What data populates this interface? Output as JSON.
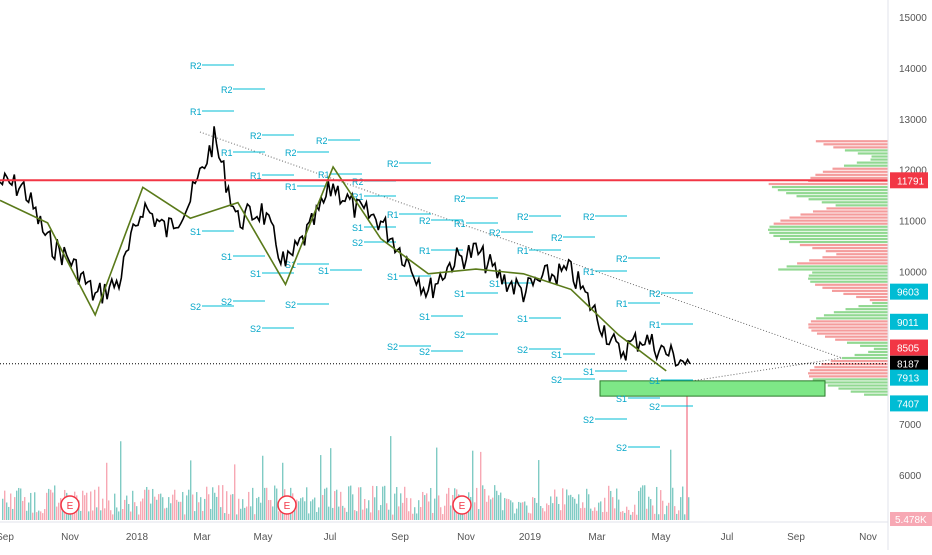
{
  "chart_data": {
    "type": "candlestick",
    "title": "",
    "xlabel": "",
    "ylabel": "",
    "ylim": [
      4800,
      15400
    ],
    "price_ticks": [
      15000,
      14000,
      13000,
      12000,
      11000,
      10000,
      9000,
      8000,
      7000,
      6000
    ],
    "x_ticks": [
      "Sep",
      "Nov",
      "2018",
      "Mar",
      "May",
      "Jul",
      "Sep",
      "Nov",
      "2019",
      "Mar",
      "May",
      "Jul",
      "Sep",
      "Nov"
    ],
    "price_labels": [
      {
        "value": 11791,
        "text": "11791",
        "color": "#f23645"
      },
      {
        "value": 9603,
        "text": "9603",
        "color": "#00bcd4"
      },
      {
        "value": 9011,
        "text": "9011",
        "color": "#00bcd4"
      },
      {
        "value": 8505,
        "text": "8505",
        "color": "#f23645"
      },
      {
        "value": 8187,
        "text": "8187",
        "color": "#000000"
      },
      {
        "value": 7913,
        "text": "7913",
        "color": "#00bcd4"
      },
      {
        "value": 7407,
        "text": "7407",
        "color": "#00bcd4"
      }
    ],
    "volume_label": "5.478K",
    "events": [
      {
        "x": "Nov 2017",
        "label": "E"
      },
      {
        "x": "May 2018",
        "label": "E"
      },
      {
        "x": "Oct 2018",
        "label": "E"
      }
    ],
    "horizontal_lines": [
      {
        "value": 11791,
        "color": "#f23645"
      }
    ],
    "support_zone": {
      "from": 7550,
      "to": 7850,
      "x_from": "Mar 2019",
      "x_to": "Sep 2019",
      "color": "#7ee787"
    },
    "pivot_labels": [
      "R2",
      "R1",
      "S1",
      "S2"
    ],
    "price_series": [
      {
        "x": "Aug 2017",
        "close": 11750
      },
      {
        "x": "Sep 2017",
        "close": 11650
      },
      {
        "x": "Oct 2017",
        "close": 10600
      },
      {
        "x": "Oct 2017b",
        "close": 10200
      },
      {
        "x": "Nov 2017",
        "close": 9500
      },
      {
        "x": "Dec 2017",
        "close": 9800
      },
      {
        "x": "Dec 2017b",
        "close": 11300
      },
      {
        "x": "Jan 2018",
        "close": 10800
      },
      {
        "x": "Feb 2018",
        "close": 11400
      },
      {
        "x": "Mar 2018",
        "close": 12600
      },
      {
        "x": "Mar 2018b",
        "close": 11000
      },
      {
        "x": "Apr 2018",
        "close": 11200
      },
      {
        "x": "May 2018",
        "close": 10100
      },
      {
        "x": "May 2018b",
        "close": 10800
      },
      {
        "x": "Jun 2018",
        "close": 11700
      },
      {
        "x": "Jul 2018",
        "close": 11200
      },
      {
        "x": "Aug 2018",
        "close": 11000
      },
      {
        "x": "Aug 2018b",
        "close": 10300
      },
      {
        "x": "Sep 2018",
        "close": 9600
      },
      {
        "x": "Oct 2018",
        "close": 10200
      },
      {
        "x": "Nov 2018",
        "close": 10400
      },
      {
        "x": "Nov 2018b",
        "close": 9900
      },
      {
        "x": "Dec 2018",
        "close": 9600
      },
      {
        "x": "Jan 2019",
        "close": 9900
      },
      {
        "x": "Feb 2019",
        "close": 10000
      },
      {
        "x": "Feb 2019b",
        "close": 9200
      },
      {
        "x": "Mar 2019",
        "close": 8400
      },
      {
        "x": "Apr 2019",
        "close": 8700
      },
      {
        "x": "May 2019",
        "close": 8400
      },
      {
        "x": "May 2019b",
        "close": 8187
      }
    ]
  }
}
